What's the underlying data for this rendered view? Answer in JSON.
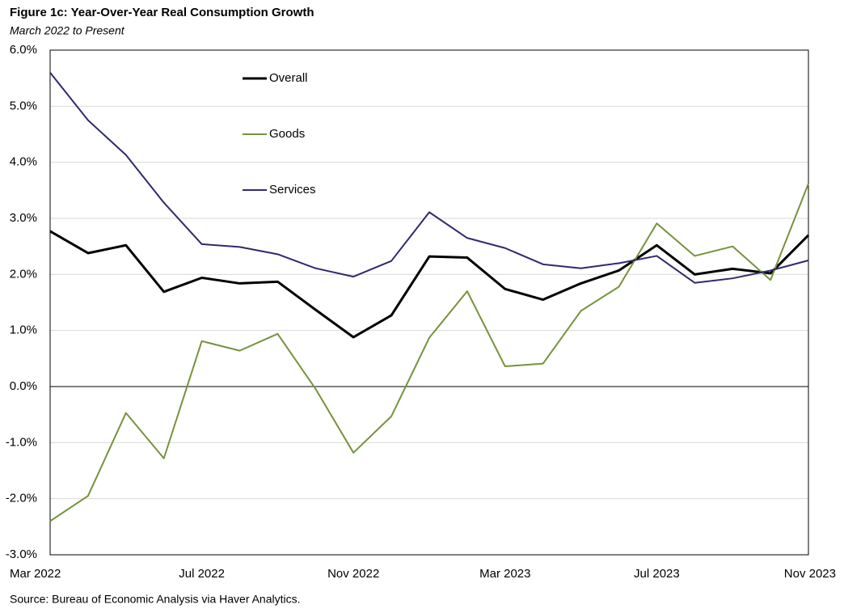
{
  "chart_data": {
    "type": "line",
    "title": "Figure 1c: Year-Over-Year Real Consumption Growth",
    "subtitle": "March 2022  to Present",
    "source": "Source: Bureau of Economic Analysis via Haver Analytics.",
    "categories": [
      "Mar 2022",
      null,
      null,
      null,
      "Jul 2022",
      null,
      null,
      null,
      "Nov 2022",
      null,
      null,
      null,
      "Mar 2023",
      null,
      null,
      null,
      "Jul 2023",
      null,
      null,
      null,
      "Nov 2023"
    ],
    "series": [
      {
        "name": "Overall",
        "color": "#000000",
        "width": 3,
        "values": [
          2.77,
          2.38,
          2.52,
          1.69,
          1.94,
          1.84,
          1.87,
          1.37,
          0.88,
          1.27,
          2.32,
          2.3,
          1.74,
          1.55,
          1.84,
          2.07,
          2.52,
          2.0,
          2.1,
          2.02,
          2.7
        ]
      },
      {
        "name": "Goods",
        "color": "#76923c",
        "width": 2,
        "values": [
          -2.4,
          -1.95,
          -0.47,
          -1.28,
          0.81,
          0.64,
          0.94,
          -0.04,
          -1.18,
          -0.53,
          0.87,
          1.7,
          0.36,
          0.41,
          1.35,
          1.78,
          2.91,
          2.33,
          2.5,
          1.9,
          3.62
        ]
      },
      {
        "name": "Services",
        "color": "#2e2a6e",
        "width": 2,
        "values": [
          5.6,
          4.75,
          4.13,
          3.28,
          2.54,
          2.49,
          2.36,
          2.11,
          1.96,
          2.24,
          3.11,
          2.65,
          2.47,
          2.18,
          2.11,
          2.2,
          2.33,
          1.85,
          1.93,
          2.07,
          2.25
        ]
      }
    ],
    "ylim": [
      -3,
      6
    ],
    "yticks": [
      {
        "value": -3,
        "label": "-3.0%"
      },
      {
        "value": -2,
        "label": "-2.0%"
      },
      {
        "value": -1,
        "label": "-1.0%"
      },
      {
        "value": 0,
        "label": "0.0%"
      },
      {
        "value": 1,
        "label": "1.0%"
      },
      {
        "value": 2,
        "label": "2.0%"
      },
      {
        "value": 3,
        "label": "3.0%"
      },
      {
        "value": 4,
        "label": "4.0%"
      },
      {
        "value": 5,
        "label": "5.0%"
      },
      {
        "value": 6,
        "label": "6.0%"
      }
    ],
    "grid": true
  }
}
